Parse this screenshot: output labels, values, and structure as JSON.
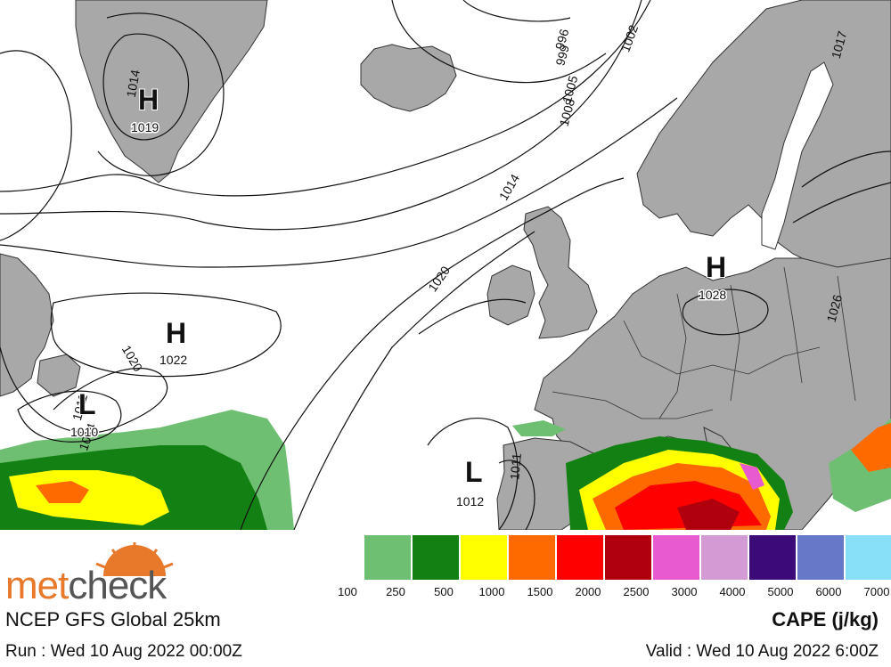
{
  "brand": {
    "part1": "met",
    "part2": "check",
    "color1": "#e8782a",
    "color2": "#555555"
  },
  "model_title": "NCEP GFS Global 25km",
  "run_text": "Run : Wed 10 Aug 2022 00:00Z",
  "valid_text": "Valid : Wed 10 Aug 2022 6:00Z",
  "parameter": "CAPE (j/kg)",
  "legend": {
    "ticks": [
      "100",
      "250",
      "500",
      "1000",
      "1500",
      "2000",
      "2500",
      "3000",
      "4000",
      "5000",
      "6000",
      "7000"
    ],
    "colors": [
      "#6fbf73",
      "#138013",
      "#ffff00",
      "#ff6a00",
      "#ff0000",
      "#b0000d",
      "#e85ad0",
      "#d39ad3",
      "#3d0a7a",
      "#6878c8",
      "#88e0f8"
    ]
  },
  "pressure_centers": [
    {
      "type": "H",
      "value": "1019"
    },
    {
      "type": "H",
      "value": "1022"
    },
    {
      "type": "L",
      "value": "1010"
    },
    {
      "type": "L",
      "value": "1012"
    },
    {
      "type": "H",
      "value": "1028"
    }
  ],
  "isobar_labels": [
    "1014",
    "1020",
    "1014",
    "1020",
    "996",
    "999",
    "1002",
    "1005",
    "1008",
    "1017",
    "1026",
    "1011",
    "1014",
    "1011"
  ],
  "colors": {
    "land": "#a8a8a8",
    "sea": "#ffffff",
    "isobar": "#111111",
    "border": "#333333"
  }
}
